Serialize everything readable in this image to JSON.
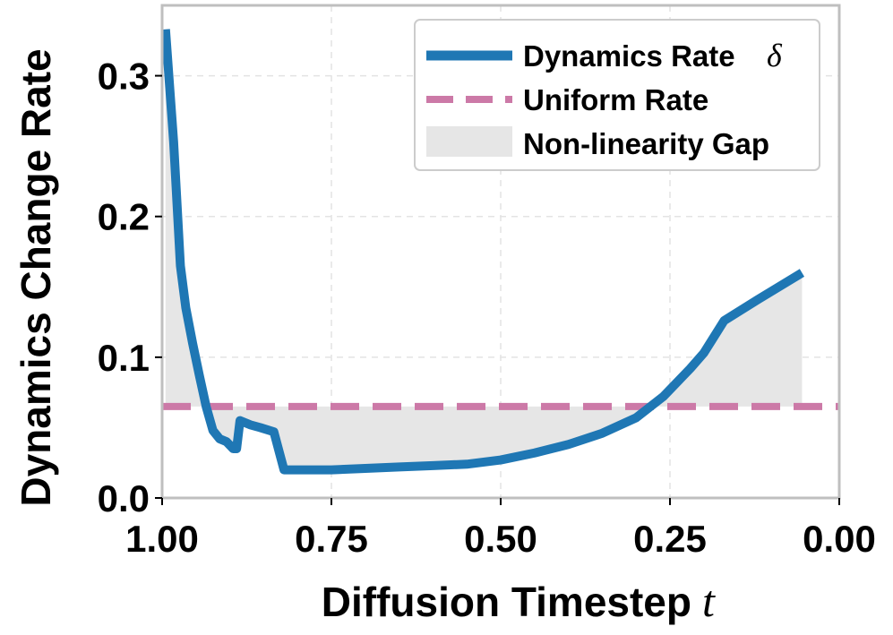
{
  "chart_data": {
    "type": "line",
    "xlabel": "Diffusion Timestep",
    "xlabel_symbol": "t",
    "ylabel": "Dynamics Change Rate",
    "xlim": [
      1.0,
      0.0
    ],
    "ylim": [
      0.0,
      0.35
    ],
    "x_ticks": [
      1.0,
      0.75,
      0.5,
      0.25,
      0.0
    ],
    "x_tick_labels": [
      "1.00",
      "0.75",
      "0.50",
      "0.25",
      "0.00"
    ],
    "y_ticks": [
      0.0,
      0.1,
      0.2,
      0.3
    ],
    "y_tick_labels": [
      "0.0",
      "0.1",
      "0.2",
      "0.3"
    ],
    "grid": true,
    "legend_position": "top-right",
    "series": [
      {
        "name": "Dynamics Rate",
        "name_symbol": "δ",
        "color": "#1f77b4",
        "style": "solid",
        "x": [
          0.995,
          0.983,
          0.973,
          0.965,
          0.955,
          0.945,
          0.935,
          0.925,
          0.915,
          0.905,
          0.895,
          0.89,
          0.885,
          0.87,
          0.855,
          0.835,
          0.82,
          0.81,
          0.78,
          0.75,
          0.7,
          0.65,
          0.6,
          0.55,
          0.5,
          0.45,
          0.4,
          0.35,
          0.3,
          0.26,
          0.22,
          0.2,
          0.17,
          0.12,
          0.055
        ],
        "y": [
          0.333,
          0.253,
          0.165,
          0.135,
          0.11,
          0.087,
          0.065,
          0.048,
          0.042,
          0.04,
          0.035,
          0.035,
          0.055,
          0.052,
          0.05,
          0.047,
          0.02,
          0.02,
          0.02,
          0.02,
          0.021,
          0.022,
          0.023,
          0.024,
          0.027,
          0.032,
          0.038,
          0.046,
          0.057,
          0.072,
          0.092,
          0.103,
          0.126,
          0.141,
          0.16
        ]
      },
      {
        "name": "Uniform Rate",
        "color": "#cc79a7",
        "style": "dashed",
        "y_constant": 0.065
      }
    ],
    "fill": {
      "name": "Non-linearity Gap",
      "color": "#e6e6e6",
      "between": [
        "Dynamics Rate",
        "Uniform Rate"
      ]
    }
  }
}
